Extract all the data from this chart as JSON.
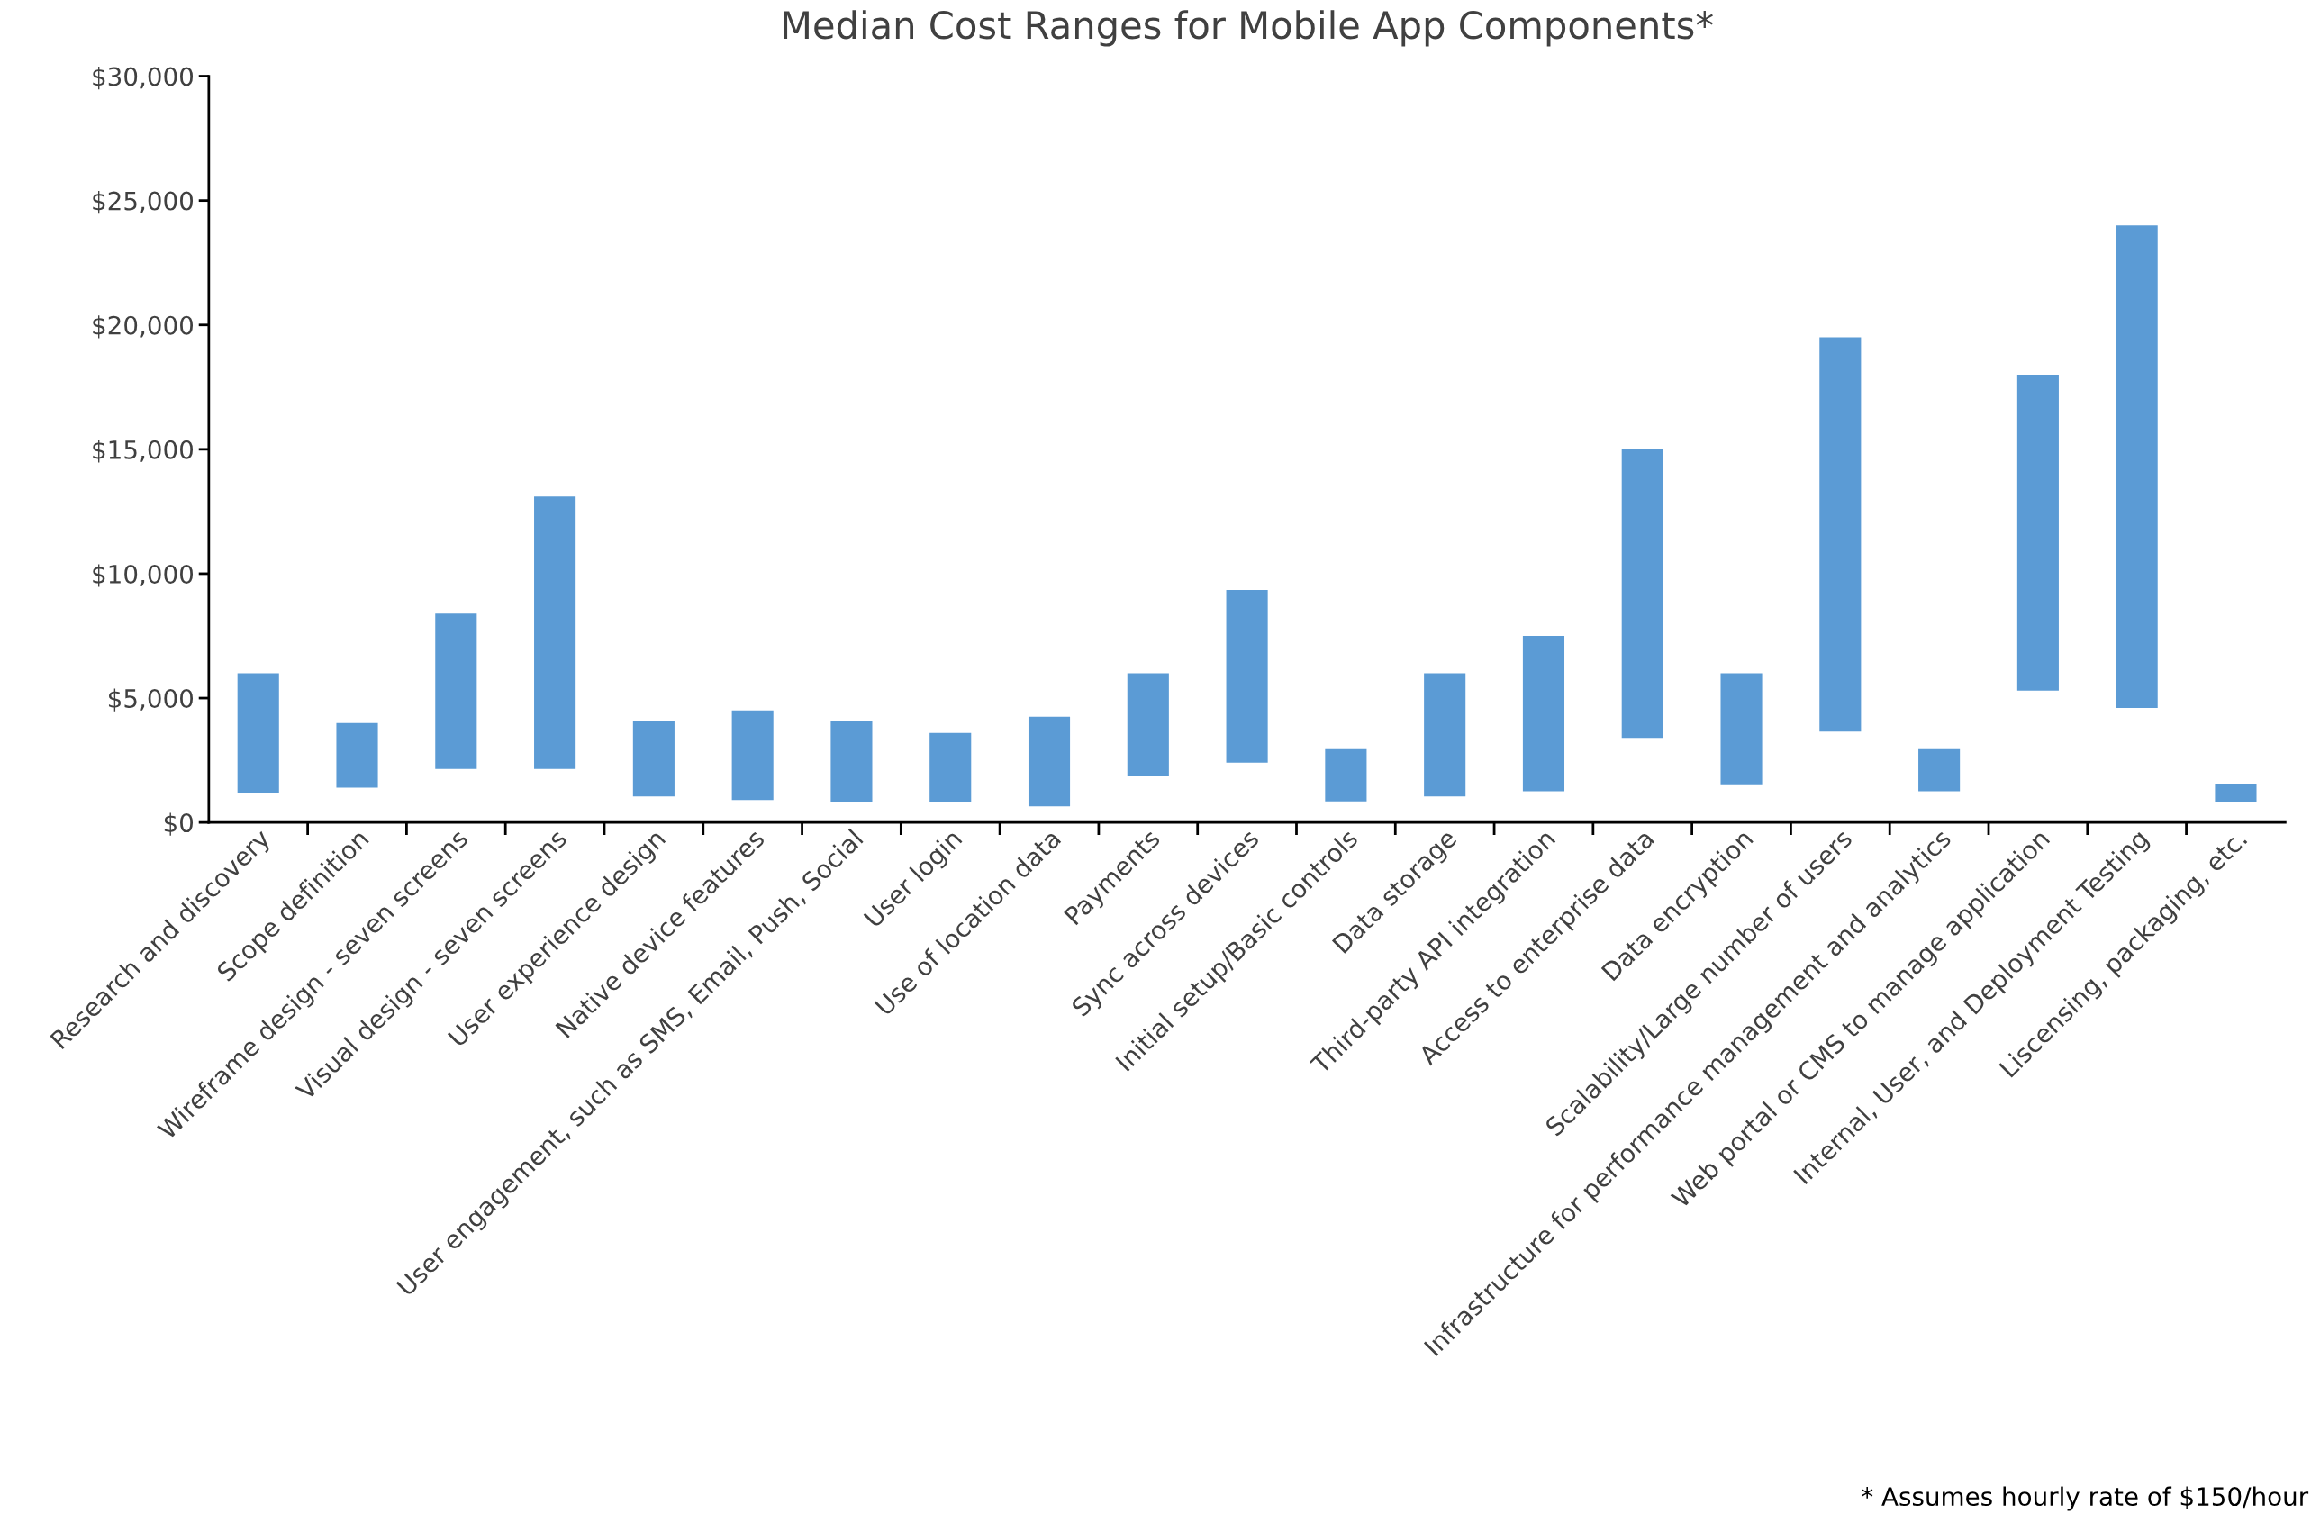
{
  "chart_data": {
    "type": "bar",
    "title": "Median Cost Ranges for Mobile App Components*",
    "categories": [
      "Research and discovery",
      "Scope definition",
      "Wireframe design - seven screens",
      "Visual design - seven screens",
      "User experience design",
      "Native device features",
      "User engagement, such as SMS, Email, Push, Social",
      "User login",
      "Use of location data",
      "Payments",
      "Sync across devices",
      "Initial setup/Basic controls",
      "Data storage",
      "Third-party API integration",
      "Access to enterprise data",
      "Data encryption",
      "Scalability/Large number of users",
      "Infrastructure for performance management and analytics",
      "Web portal or CMS to manage application",
      "Internal, User, and Deployment Testing",
      "Liscensing, packaging, etc."
    ],
    "base": [
      1200,
      1400,
      2150,
      2150,
      1050,
      900,
      800,
      800,
      650,
      1850,
      2400,
      850,
      1050,
      1250,
      3400,
      1500,
      3650,
      1250,
      5300,
      4600,
      800
    ],
    "values": [
      4800,
      2600,
      6250,
      10950,
      3050,
      3600,
      3300,
      2800,
      3600,
      4150,
      6950,
      2100,
      4950,
      6250,
      11600,
      4500,
      15850,
      1700,
      12700,
      19400,
      750
    ],
    "color": "#5b9bd5",
    "ylim": [
      0,
      30000
    ],
    "yticks": [
      {
        "value": 0,
        "label": "$0"
      },
      {
        "value": 5000,
        "label": "$5,000"
      },
      {
        "value": 10000,
        "label": "$10,000"
      },
      {
        "value": 15000,
        "label": "$15,000"
      },
      {
        "value": 20000,
        "label": "$20,000"
      },
      {
        "value": 25000,
        "label": "$25,000"
      },
      {
        "value": 30000,
        "label": "$30,000"
      }
    ],
    "grid": false,
    "annotations": [
      "* Assumes hourly rate of $150/hour"
    ]
  }
}
